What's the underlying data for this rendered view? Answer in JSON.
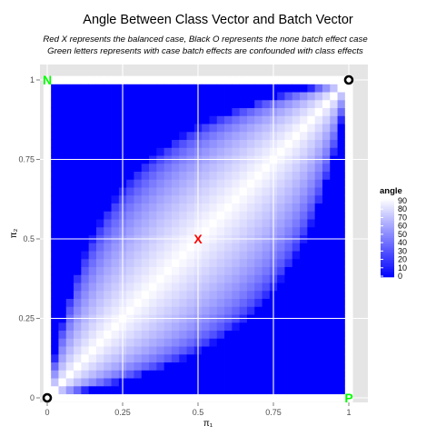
{
  "chart_data": {
    "type": "heatmap",
    "title": "Angle Between Class Vector and Batch Vector",
    "subtitle": [
      "Red X represents the balanced case, Black O represents the none batch effect case",
      "Green letters represents with case batch effects are confounded with class effects"
    ],
    "xlabel": "π₁",
    "ylabel": "π₂",
    "xlim": [
      0,
      1
    ],
    "ylim": [
      0,
      1
    ],
    "grid": true,
    "x_ticks": [
      {
        "value": 0,
        "label": "0"
      },
      {
        "value": 0.25,
        "label": "0.25"
      },
      {
        "value": 0.5,
        "label": "0.5"
      },
      {
        "value": 0.75,
        "label": "0.75"
      },
      {
        "value": 1,
        "label": "1"
      }
    ],
    "y_ticks": [
      {
        "value": 0,
        "label": "0"
      },
      {
        "value": 0.25,
        "label": "0.25"
      },
      {
        "value": 0.5,
        "label": "0.5"
      },
      {
        "value": 0.75,
        "label": "0.75"
      },
      {
        "value": 1,
        "label": "1"
      }
    ],
    "cells_per_side": 41,
    "value": "angle in degrees between class vector and batch vector; 90 on the diagonal π₁ = π₂, decreasing to 0 at the corners (0,1) and (1,0)",
    "color_scale": {
      "low": "#0000ff",
      "high": "#ffffff",
      "min": 0,
      "max": 90
    },
    "legend": {
      "title": "angle",
      "position": "right",
      "labels": [
        "90",
        "80",
        "70",
        "60",
        "50",
        "40",
        "30",
        "20",
        "10",
        "0"
      ]
    },
    "markers": [
      {
        "x": 0.5,
        "y": 0.5,
        "text": "X",
        "color": "#ff0000",
        "meaning": "balanced case"
      },
      {
        "x": 0,
        "y": 0,
        "text": "O",
        "color": "#000000",
        "meaning": "no batch effect"
      },
      {
        "x": 1,
        "y": 1,
        "text": "O",
        "color": "#000000",
        "meaning": "no batch effect"
      },
      {
        "x": 0,
        "y": 1,
        "text": "N",
        "color": "#00ff00",
        "meaning": "confounded"
      },
      {
        "x": 1,
        "y": 0,
        "text": "P",
        "color": "#00ff00",
        "meaning": "confounded"
      }
    ]
  },
  "colors": {
    "panel_bg": "#e5e5e5",
    "grid": "#ffffff"
  }
}
